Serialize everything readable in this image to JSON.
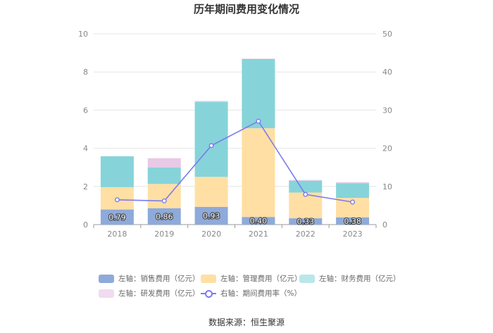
{
  "chart_data": {
    "type": "bar",
    "title": "历年期间费用变化情况",
    "categories": [
      "2018",
      "2019",
      "2020",
      "2021",
      "2022",
      "2023"
    ],
    "y_left": {
      "min": 0,
      "max": 10,
      "ticks": [
        "0",
        "2",
        "4",
        "6",
        "8",
        "10"
      ]
    },
    "y_right": {
      "min": 0,
      "max": 50,
      "ticks": [
        "0",
        "10",
        "20",
        "30",
        "40",
        "50"
      ]
    },
    "series": [
      {
        "name": "左轴：销售费用（亿元）",
        "axis": "left",
        "color": "#8eaadb",
        "values": [
          0.79,
          0.86,
          0.93,
          0.4,
          0.33,
          0.38
        ],
        "labels": [
          "0.79",
          "0.86",
          "0.93",
          "0.40",
          "0.33",
          "0.38"
        ]
      },
      {
        "name": "左轴：管理费用（亿元）",
        "axis": "left",
        "color": "#ffdfa3",
        "values": [
          1.17,
          1.27,
          1.57,
          4.65,
          1.35,
          1.02
        ]
      },
      {
        "name": "左轴：财务费用（亿元）",
        "axis": "left",
        "color": "#86d4d9",
        "values": [
          1.62,
          0.87,
          3.93,
          3.63,
          0.62,
          0.76
        ]
      },
      {
        "name": "左轴：研发费用（亿元）",
        "axis": "left",
        "color": "#e8c9e6",
        "values": [
          0.0,
          0.48,
          0.05,
          0.02,
          0.04,
          0.06
        ]
      },
      {
        "name": "右轴：期间费用率（%）",
        "axis": "right",
        "type": "line",
        "color": "#7b7bf0",
        "values": [
          6.5,
          6.2,
          20.7,
          27.1,
          7.9,
          5.9
        ]
      }
    ]
  },
  "source": "数据来源：恒生聚源"
}
